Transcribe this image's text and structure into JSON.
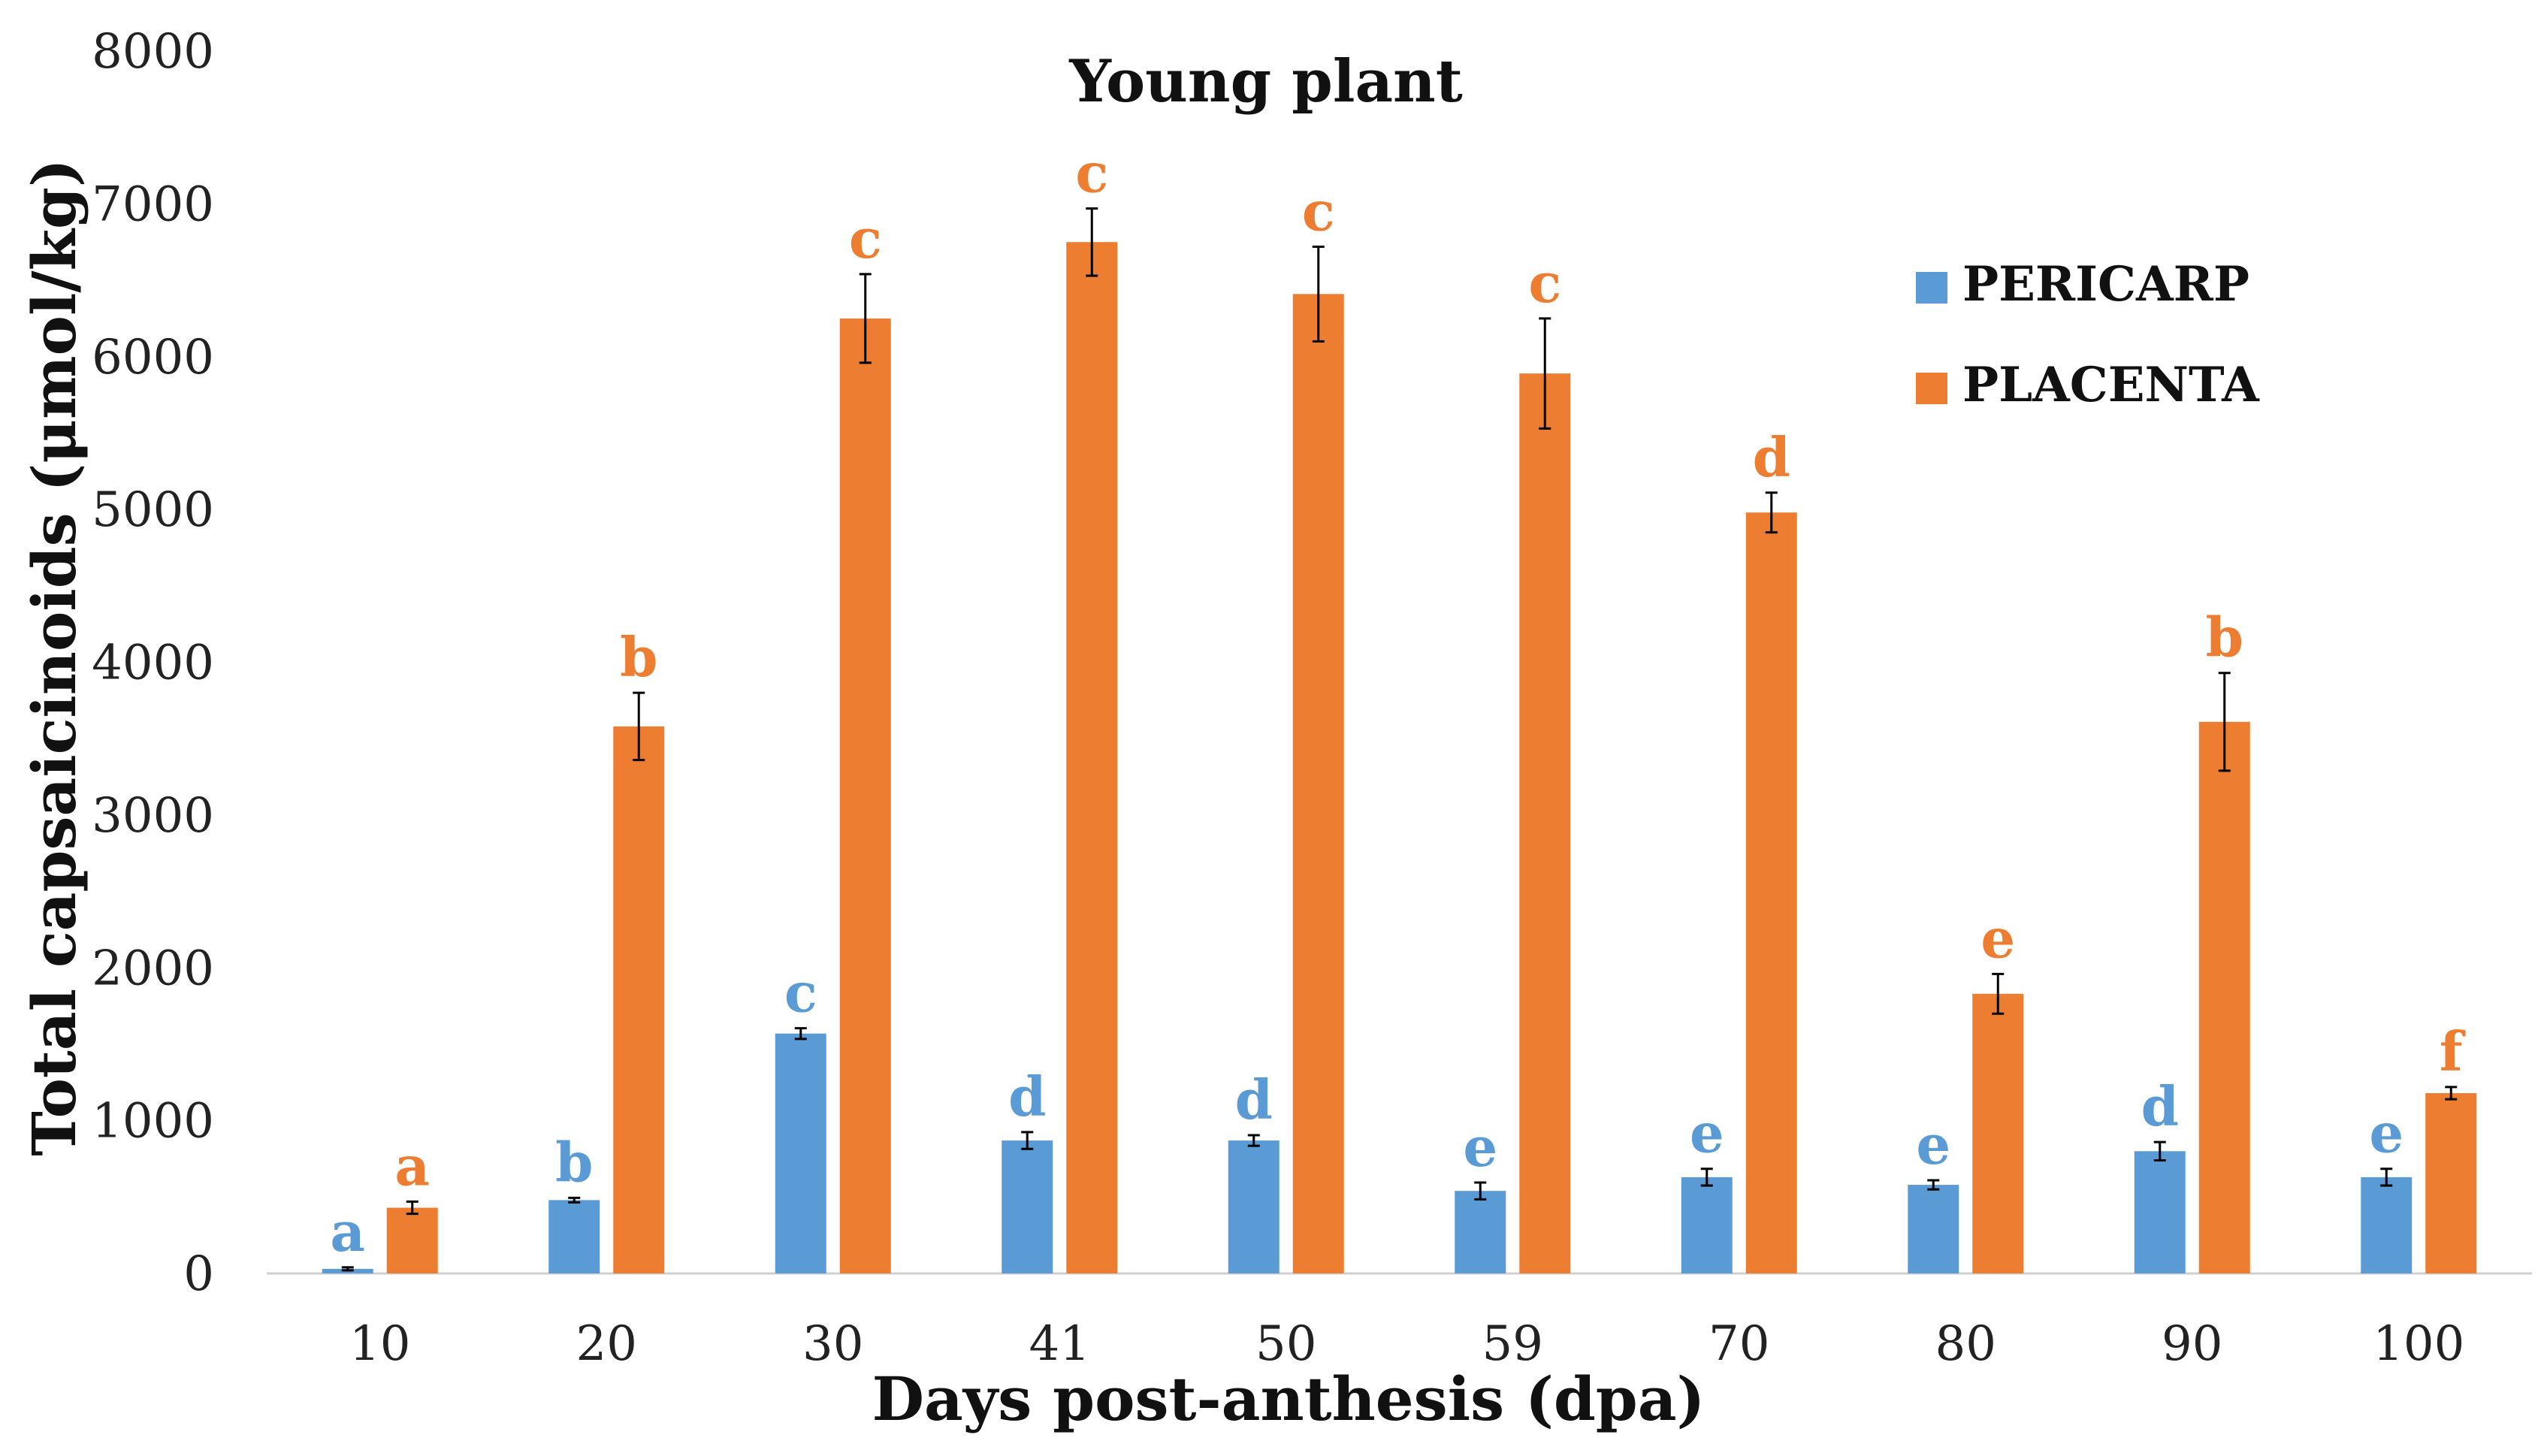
{
  "chart_data": {
    "type": "bar",
    "title": "Young plant",
    "xlabel": "Days post-anthesis (dpa)",
    "ylabel": "Total capsaicinoids (μmol/kg)",
    "ylim": [
      0,
      8000
    ],
    "yticks": [
      "0",
      "1000",
      "2000",
      "3000",
      "4000",
      "5000",
      "6000",
      "7000",
      "8000"
    ],
    "categories": [
      "10",
      "20",
      "30",
      "41",
      "50",
      "59",
      "70",
      "80",
      "90",
      "100"
    ],
    "legend_position": "top-right",
    "grid": false,
    "series": [
      {
        "name": "PERICARP",
        "color": "#5B9BD5",
        "values": [
          30,
          480,
          1570,
          870,
          870,
          540,
          630,
          580,
          800,
          630
        ],
        "errors": [
          10,
          15,
          35,
          55,
          35,
          55,
          55,
          30,
          60,
          55
        ],
        "letters": [
          "a",
          "b",
          "c",
          "d",
          "d",
          "e",
          "e",
          "e",
          "d",
          "e"
        ]
      },
      {
        "name": "PLACENTA",
        "color": "#ED7D31",
        "values": [
          430,
          3580,
          6250,
          6750,
          6410,
          5890,
          4980,
          1830,
          3610,
          1180
        ],
        "errors": [
          40,
          220,
          290,
          220,
          310,
          360,
          130,
          130,
          320,
          40
        ],
        "letters": [
          "a",
          "b",
          "c",
          "c",
          "c",
          "c",
          "d",
          "e",
          "b",
          "f"
        ]
      }
    ]
  }
}
